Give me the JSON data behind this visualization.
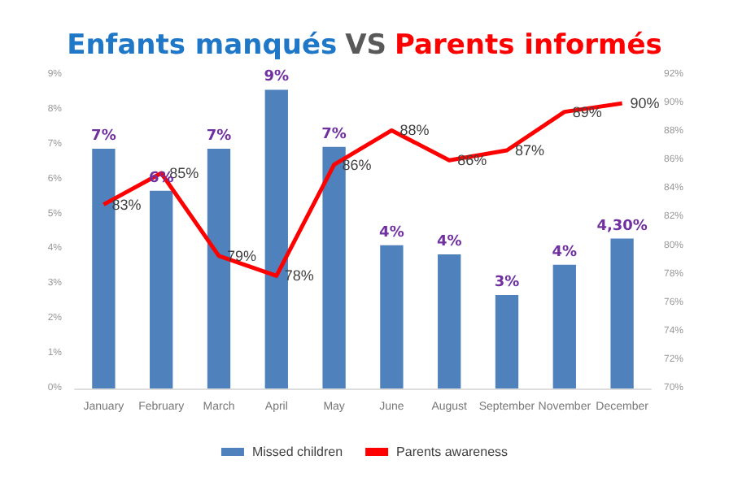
{
  "chart_data": {
    "type": "bar",
    "title": "Enfants manqués VS Parents informés",
    "categories": [
      "January",
      "February",
      "March",
      "April",
      "May",
      "June",
      "August",
      "September",
      "November",
      "December"
    ],
    "series": [
      {
        "name": "Missed children",
        "color": "#4f81bd",
        "values": [
          6.88,
          5.67,
          6.88,
          8.57,
          6.93,
          4.11,
          3.85,
          2.68,
          3.55,
          4.3
        ],
        "value_labels": [
          "7%",
          "6%",
          "7%",
          "9%",
          "7%",
          "4%",
          "4%",
          "3%",
          "4%",
          "4,30%"
        ]
      },
      {
        "name": "Parents awareness",
        "type": "line",
        "axis": "y2",
        "color": "#ff0000",
        "marker": "none",
        "values": [
          82.9,
          85.1,
          79.3,
          77.9,
          85.7,
          88.1,
          86.0,
          86.7,
          89.4,
          90.0
        ],
        "value_labels": [
          "83%",
          "85%",
          "79%",
          "78%",
          "86%",
          "88%",
          "86%",
          "87%",
          "89%",
          "90%"
        ]
      }
    ],
    "ylim": [
      0,
      9
    ],
    "yticks": [
      {
        "value": 0,
        "label": "0%"
      },
      {
        "value": 1,
        "label": "1%"
      },
      {
        "value": 2,
        "label": "2%"
      },
      {
        "value": 3,
        "label": "3%"
      },
      {
        "value": 4,
        "label": "4%"
      },
      {
        "value": 5,
        "label": "5%"
      },
      {
        "value": 6,
        "label": "6%"
      },
      {
        "value": 7,
        "label": "7%"
      },
      {
        "value": 8,
        "label": "8%"
      },
      {
        "value": 9,
        "label": "9%"
      }
    ],
    "y2lim": [
      70,
      92
    ],
    "y2ticks": [
      {
        "value": 70,
        "label": "70%"
      },
      {
        "value": 72,
        "label": "72%"
      },
      {
        "value": 74,
        "label": "74%"
      },
      {
        "value": 76,
        "label": "76%"
      },
      {
        "value": 78,
        "label": "78%"
      },
      {
        "value": 80,
        "label": "80%"
      },
      {
        "value": 82,
        "label": "82%"
      },
      {
        "value": 84,
        "label": "84%"
      },
      {
        "value": 86,
        "label": "86%"
      },
      {
        "value": 88,
        "label": "88%"
      },
      {
        "value": 90,
        "label": "90%"
      },
      {
        "value": 92,
        "label": "92%"
      }
    ],
    "grid": false,
    "legend": "bottom"
  }
}
